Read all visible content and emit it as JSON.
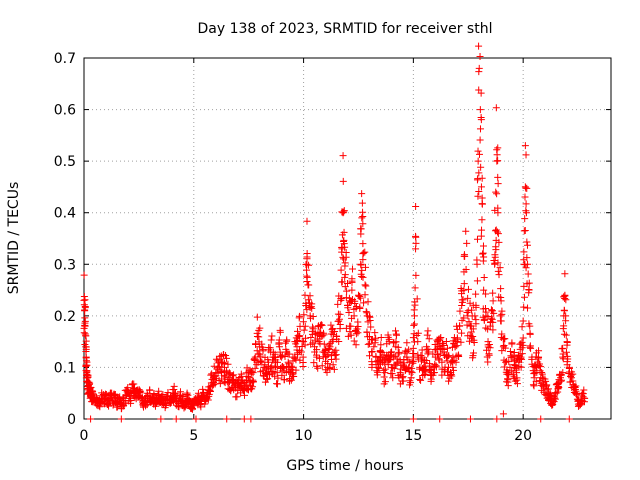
{
  "chart_data": {
    "type": "scatter",
    "title": "Day 138 of 2023, SRMTID for receiver sthl",
    "xlabel": "GPS time / hours",
    "ylabel": "SRMTID / TECUs",
    "xlim": [
      0,
      24
    ],
    "ylim": [
      0,
      0.7
    ],
    "xticks": [
      0,
      5,
      10,
      15,
      20
    ],
    "yticks": [
      0,
      0.1,
      0.2,
      0.3,
      0.4,
      0.5,
      0.6,
      0.7
    ],
    "grid": true,
    "marker": "+",
    "color": "#ff0000",
    "series": [
      {
        "name": "SRMTID",
        "points": [
          [
            0.0,
            0.23
          ],
          [
            0.03,
            0.21
          ],
          [
            0.05,
            0.18
          ],
          [
            0.08,
            0.14
          ],
          [
            0.1,
            0.12
          ],
          [
            0.12,
            0.09
          ],
          [
            0.15,
            0.08
          ],
          [
            0.18,
            0.07
          ],
          [
            0.2,
            0.065
          ],
          [
            0.25,
            0.06
          ],
          [
            0.3,
            0.05
          ],
          [
            0.35,
            0.045
          ],
          [
            0.4,
            0.04
          ],
          [
            0.5,
            0.035
          ],
          [
            0.6,
            0.04
          ],
          [
            0.7,
            0.03
          ],
          [
            0.8,
            0.045
          ],
          [
            0.9,
            0.035
          ],
          [
            1.0,
            0.04
          ],
          [
            1.1,
            0.03
          ],
          [
            1.2,
            0.05
          ],
          [
            1.3,
            0.035
          ],
          [
            1.4,
            0.045
          ],
          [
            1.5,
            0.03
          ],
          [
            1.6,
            0.04
          ],
          [
            1.7,
            0.02
          ],
          [
            1.8,
            0.035
          ],
          [
            1.9,
            0.045
          ],
          [
            2.0,
            0.05
          ],
          [
            2.1,
            0.04
          ],
          [
            2.2,
            0.055
          ],
          [
            2.3,
            0.06
          ],
          [
            2.4,
            0.05
          ],
          [
            2.5,
            0.045
          ],
          [
            2.6,
            0.04
          ],
          [
            2.7,
            0.03
          ],
          [
            2.8,
            0.035
          ],
          [
            2.9,
            0.04
          ],
          [
            3.0,
            0.045
          ],
          [
            3.1,
            0.035
          ],
          [
            3.2,
            0.04
          ],
          [
            3.3,
            0.03
          ],
          [
            3.4,
            0.045
          ],
          [
            3.5,
            0.035
          ],
          [
            3.6,
            0.04
          ],
          [
            3.7,
            0.03
          ],
          [
            3.8,
            0.045
          ],
          [
            3.9,
            0.035
          ],
          [
            4.0,
            0.04
          ],
          [
            4.1,
            0.05
          ],
          [
            4.2,
            0.035
          ],
          [
            4.3,
            0.03
          ],
          [
            4.4,
            0.045
          ],
          [
            4.5,
            0.035
          ],
          [
            4.6,
            0.025
          ],
          [
            4.7,
            0.04
          ],
          [
            4.8,
            0.035
          ],
          [
            4.9,
            0.02
          ],
          [
            5.0,
            0.03
          ],
          [
            5.1,
            0.035
          ],
          [
            5.2,
            0.04
          ],
          [
            5.3,
            0.03
          ],
          [
            5.4,
            0.045
          ],
          [
            5.5,
            0.035
          ],
          [
            5.6,
            0.04
          ],
          [
            5.7,
            0.055
          ],
          [
            5.8,
            0.07
          ],
          [
            5.9,
            0.08
          ],
          [
            6.0,
            0.09
          ],
          [
            6.1,
            0.1
          ],
          [
            6.2,
            0.095
          ],
          [
            6.3,
            0.11
          ],
          [
            6.4,
            0.1
          ],
          [
            6.5,
            0.09
          ],
          [
            6.6,
            0.08
          ],
          [
            6.7,
            0.075
          ],
          [
            6.8,
            0.07
          ],
          [
            6.9,
            0.06
          ],
          [
            7.0,
            0.055
          ],
          [
            7.1,
            0.065
          ],
          [
            7.2,
            0.07
          ],
          [
            7.3,
            0.06
          ],
          [
            7.4,
            0.075
          ],
          [
            7.5,
            0.08
          ],
          [
            7.6,
            0.07
          ],
          [
            7.7,
            0.09
          ],
          [
            7.8,
            0.12
          ],
          [
            7.9,
            0.16
          ],
          [
            8.0,
            0.14
          ],
          [
            8.1,
            0.11
          ],
          [
            8.2,
            0.1
          ],
          [
            8.3,
            0.09
          ],
          [
            8.4,
            0.11
          ],
          [
            8.5,
            0.13
          ],
          [
            8.6,
            0.12
          ],
          [
            8.7,
            0.1
          ],
          [
            8.8,
            0.09
          ],
          [
            8.9,
            0.14
          ],
          [
            9.0,
            0.12
          ],
          [
            9.1,
            0.1
          ],
          [
            9.2,
            0.13
          ],
          [
            9.3,
            0.11
          ],
          [
            9.4,
            0.09
          ],
          [
            9.5,
            0.1
          ],
          [
            9.6,
            0.12
          ],
          [
            9.7,
            0.14
          ],
          [
            9.8,
            0.16
          ],
          [
            9.9,
            0.13
          ],
          [
            10.0,
            0.15
          ],
          [
            10.1,
            0.22
          ],
          [
            10.15,
            0.3
          ],
          [
            10.2,
            0.26
          ],
          [
            10.3,
            0.2
          ],
          [
            10.4,
            0.17
          ],
          [
            10.5,
            0.14
          ],
          [
            10.6,
            0.12
          ],
          [
            10.7,
            0.15
          ],
          [
            10.8,
            0.16
          ],
          [
            10.9,
            0.13
          ],
          [
            11.0,
            0.12
          ],
          [
            11.1,
            0.1
          ],
          [
            11.2,
            0.14
          ],
          [
            11.3,
            0.15
          ],
          [
            11.4,
            0.13
          ],
          [
            11.5,
            0.16
          ],
          [
            11.6,
            0.19
          ],
          [
            11.7,
            0.23
          ],
          [
            11.75,
            0.33
          ],
          [
            11.8,
            0.4
          ],
          [
            11.85,
            0.34
          ],
          [
            11.9,
            0.28
          ],
          [
            12.0,
            0.22
          ],
          [
            12.1,
            0.18
          ],
          [
            12.2,
            0.25
          ],
          [
            12.3,
            0.2
          ],
          [
            12.4,
            0.17
          ],
          [
            12.5,
            0.24
          ],
          [
            12.6,
            0.3
          ],
          [
            12.65,
            0.39
          ],
          [
            12.7,
            0.34
          ],
          [
            12.8,
            0.26
          ],
          [
            12.9,
            0.2
          ],
          [
            13.0,
            0.16
          ],
          [
            13.1,
            0.13
          ],
          [
            13.2,
            0.14
          ],
          [
            13.3,
            0.12
          ],
          [
            13.4,
            0.1
          ],
          [
            13.5,
            0.13
          ],
          [
            13.6,
            0.11
          ],
          [
            13.7,
            0.09
          ],
          [
            13.8,
            0.12
          ],
          [
            13.9,
            0.15
          ],
          [
            14.0,
            0.1
          ],
          [
            14.1,
            0.12
          ],
          [
            14.2,
            0.14
          ],
          [
            14.3,
            0.11
          ],
          [
            14.4,
            0.09
          ],
          [
            14.5,
            0.08
          ],
          [
            14.6,
            0.1
          ],
          [
            14.7,
            0.12
          ],
          [
            14.8,
            0.1
          ],
          [
            14.9,
            0.08
          ],
          [
            15.0,
            0.12
          ],
          [
            15.05,
            0.2
          ],
          [
            15.1,
            0.33
          ],
          [
            15.2,
            0.15
          ],
          [
            15.3,
            0.1
          ],
          [
            15.4,
            0.12
          ],
          [
            15.5,
            0.11
          ],
          [
            15.6,
            0.14
          ],
          [
            15.7,
            0.13
          ],
          [
            15.8,
            0.09
          ],
          [
            15.9,
            0.1
          ],
          [
            16.0,
            0.12
          ],
          [
            16.1,
            0.15
          ],
          [
            16.2,
            0.14
          ],
          [
            16.3,
            0.11
          ],
          [
            16.4,
            0.13
          ],
          [
            16.5,
            0.12
          ],
          [
            16.6,
            0.1
          ],
          [
            16.7,
            0.09
          ],
          [
            16.8,
            0.12
          ],
          [
            16.9,
            0.14
          ],
          [
            17.0,
            0.15
          ],
          [
            17.1,
            0.18
          ],
          [
            17.2,
            0.22
          ],
          [
            17.3,
            0.25
          ],
          [
            17.4,
            0.29
          ],
          [
            17.5,
            0.21
          ],
          [
            17.6,
            0.18
          ],
          [
            17.7,
            0.16
          ],
          [
            17.8,
            0.2
          ],
          [
            17.9,
            0.3
          ],
          [
            17.95,
            0.5
          ],
          [
            18.0,
            0.68
          ],
          [
            18.05,
            0.6
          ],
          [
            18.1,
            0.45
          ],
          [
            18.15,
            0.32
          ],
          [
            18.2,
            0.25
          ],
          [
            18.3,
            0.2
          ],
          [
            18.4,
            0.15
          ],
          [
            18.5,
            0.18
          ],
          [
            18.6,
            0.21
          ],
          [
            18.7,
            0.3
          ],
          [
            18.75,
            0.44
          ],
          [
            18.8,
            0.5
          ],
          [
            18.85,
            0.4
          ],
          [
            18.9,
            0.28
          ],
          [
            19.0,
            0.19
          ],
          [
            19.1,
            0.14
          ],
          [
            19.2,
            0.11
          ],
          [
            19.3,
            0.09
          ],
          [
            19.4,
            0.1
          ],
          [
            19.5,
            0.12
          ],
          [
            19.6,
            0.1
          ],
          [
            19.7,
            0.09
          ],
          [
            19.8,
            0.11
          ],
          [
            19.9,
            0.12
          ],
          [
            20.0,
            0.19
          ],
          [
            20.05,
            0.3
          ],
          [
            20.1,
            0.45
          ],
          [
            20.15,
            0.4
          ],
          [
            20.2,
            0.3
          ],
          [
            20.3,
            0.18
          ],
          [
            20.4,
            0.12
          ],
          [
            20.5,
            0.08
          ],
          [
            20.6,
            0.1
          ],
          [
            20.7,
            0.12
          ],
          [
            20.8,
            0.08
          ],
          [
            20.9,
            0.07
          ],
          [
            21.0,
            0.06
          ],
          [
            21.1,
            0.05
          ],
          [
            21.2,
            0.04
          ],
          [
            21.3,
            0.035
          ],
          [
            21.4,
            0.04
          ],
          [
            21.5,
            0.05
          ],
          [
            21.6,
            0.06
          ],
          [
            21.7,
            0.08
          ],
          [
            21.8,
            0.12
          ],
          [
            21.85,
            0.2
          ],
          [
            21.9,
            0.24
          ],
          [
            22.0,
            0.15
          ],
          [
            22.1,
            0.1
          ],
          [
            22.2,
            0.08
          ],
          [
            22.3,
            0.06
          ],
          [
            22.4,
            0.05
          ],
          [
            22.5,
            0.035
          ],
          [
            22.6,
            0.03
          ],
          [
            22.7,
            0.05
          ],
          [
            22.8,
            0.04
          ],
          [
            0.3,
            0.0
          ],
          [
            1.7,
            0.0
          ],
          [
            3.5,
            0.0
          ],
          [
            4.2,
            0.0
          ],
          [
            5.1,
            0.0
          ],
          [
            6.5,
            0.0
          ],
          [
            7.3,
            0.0
          ],
          [
            7.6,
            0.0
          ],
          [
            15.0,
            0.0
          ],
          [
            16.2,
            0.0
          ],
          [
            17.6,
            0.0
          ],
          [
            18.8,
            0.0
          ],
          [
            19.1,
            0.01
          ],
          [
            20.8,
            0.0
          ],
          [
            22.1,
            0.0
          ]
        ]
      }
    ]
  }
}
